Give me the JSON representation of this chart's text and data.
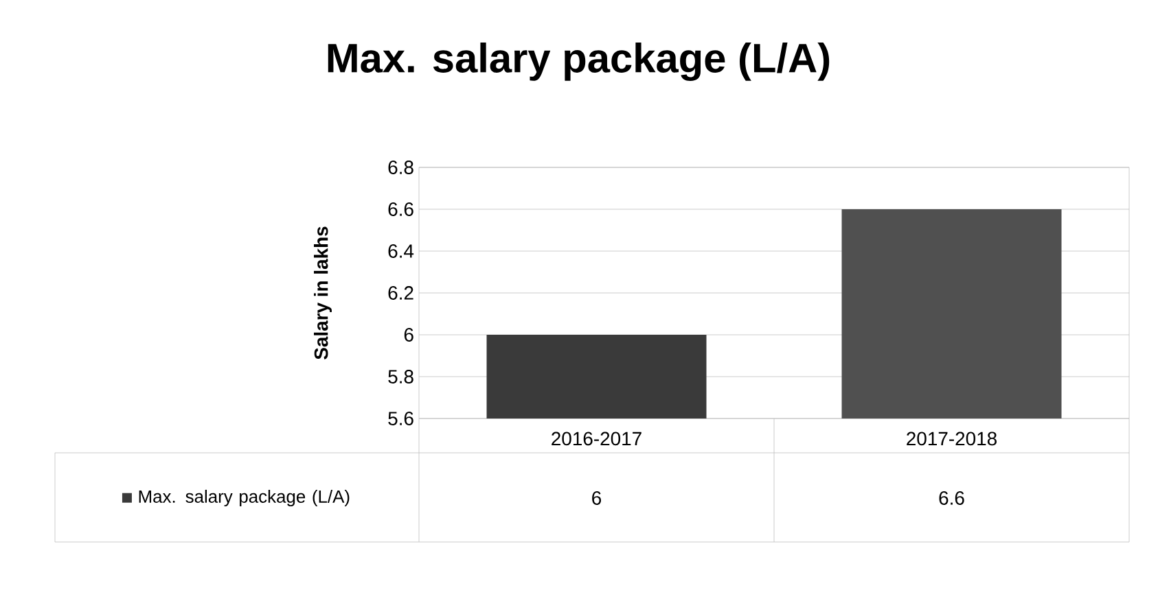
{
  "chart_data": {
    "type": "bar",
    "title": "Max. salary package (L/A)",
    "ylabel": "Salary in lakhs",
    "categories": [
      "2016-2017",
      "2017-2018"
    ],
    "series": [
      {
        "name": "Max. salary package (L/A)",
        "colors": [
          "#3a3a3a",
          "#505050"
        ],
        "values": [
          6,
          6.6
        ]
      }
    ],
    "ylim": [
      5.6,
      6.8
    ],
    "yticks": [
      5.6,
      5.8,
      6,
      6.2,
      6.4,
      6.6,
      6.8
    ],
    "grid": "y",
    "legend": "bottom left",
    "data_labels": true
  }
}
